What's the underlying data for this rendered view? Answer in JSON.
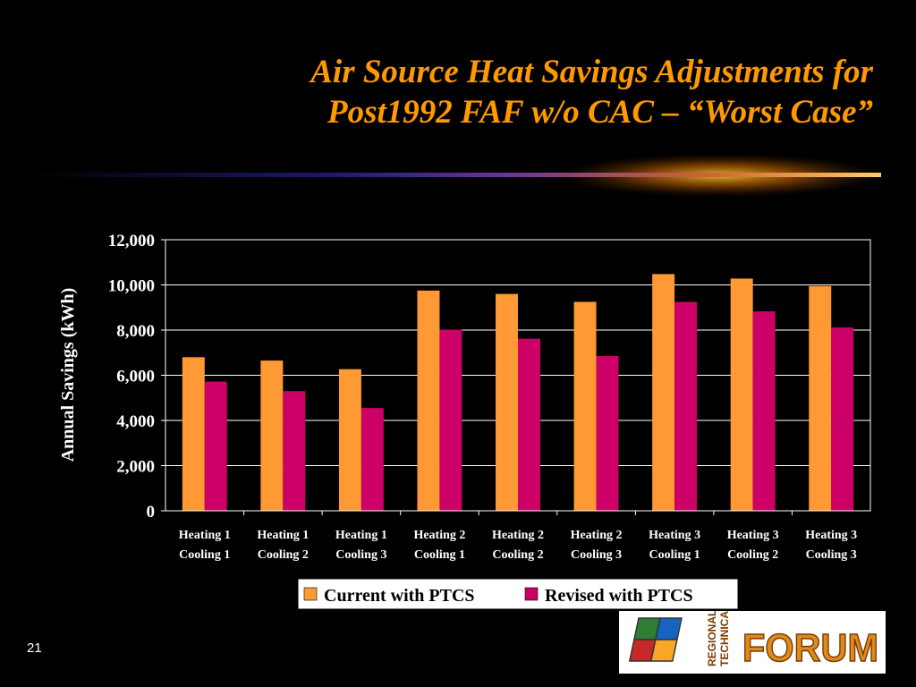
{
  "slide": {
    "title_line1": "Air Source Heat Savings Adjustments for",
    "title_line2": "Post1992 FAF w/o CAC – “Worst Case”",
    "page_number": "21"
  },
  "logo": {
    "text": "FORUM",
    "sub_text_1": "REGIONAL",
    "sub_text_2": "TECHNICAL"
  },
  "colors": {
    "background": "#000000",
    "title": "#ff9900",
    "current": "#ff9933",
    "revised": "#cc0066"
  },
  "chart_data": {
    "type": "bar",
    "title": "",
    "xlabel": "",
    "ylabel": "Annual Savings (kWh)",
    "ylim": [
      0,
      12000
    ],
    "yticks": [
      0,
      2000,
      4000,
      6000,
      8000,
      10000,
      12000
    ],
    "ytick_labels": [
      "0",
      "2,000",
      "4,000",
      "6,000",
      "8,000",
      "10,000",
      "12,000"
    ],
    "categories": [
      [
        "Heating 1",
        "Cooling 1"
      ],
      [
        "Heating 1",
        "Cooling 2"
      ],
      [
        "Heating 1",
        "Cooling 3"
      ],
      [
        "Heating 2",
        "Cooling 1"
      ],
      [
        "Heating 2",
        "Cooling 2"
      ],
      [
        "Heating 2",
        "Cooling 3"
      ],
      [
        "Heating 3",
        "Cooling 1"
      ],
      [
        "Heating 3",
        "Cooling 2"
      ],
      [
        "Heating 3",
        "Cooling 3"
      ]
    ],
    "series": [
      {
        "name": "Current with PTCS",
        "color": "#ff9933",
        "values": [
          6800,
          6650,
          6270,
          9750,
          9600,
          9250,
          10480,
          10280,
          9950
        ]
      },
      {
        "name": "Revised with PTCS",
        "color": "#cc0066",
        "values": [
          5720,
          5300,
          4550,
          8020,
          7620,
          6850,
          9250,
          8830,
          8120
        ]
      }
    ],
    "legend_position": "bottom",
    "grid": true
  }
}
